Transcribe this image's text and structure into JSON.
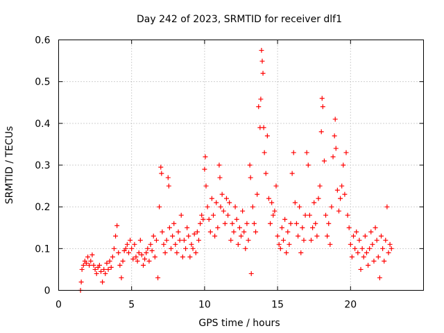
{
  "chart_data": {
    "type": "scatter",
    "title": "Day 242 of 2023, SRMTID for receiver dlf1",
    "xlabel": "GPS time / hours",
    "ylabel": "SRMTID / TECUs",
    "xlim": [
      0,
      25
    ],
    "ylim": [
      0,
      0.6
    ],
    "xticks": [
      0,
      5,
      10,
      15,
      20
    ],
    "xtick_labels": [
      "0",
      "5",
      "10",
      "15",
      "20"
    ],
    "yticks": [
      0,
      0.1,
      0.2,
      0.3,
      0.4,
      0.5,
      0.6
    ],
    "ytick_labels": [
      "0",
      "0.1",
      "0.2",
      "0.3",
      "0.4",
      "0.5",
      "0.6"
    ],
    "grid": true,
    "marker": "+",
    "color": "#ff0000",
    "series": [
      {
        "name": "SRMTID",
        "points": [
          [
            1.5,
            0.0
          ],
          [
            1.55,
            0.02
          ],
          [
            1.6,
            0.05
          ],
          [
            1.7,
            0.06
          ],
          [
            1.8,
            0.07
          ],
          [
            1.9,
            0.065
          ],
          [
            2.0,
            0.08
          ],
          [
            2.1,
            0.06
          ],
          [
            2.2,
            0.07
          ],
          [
            2.3,
            0.085
          ],
          [
            2.4,
            0.06
          ],
          [
            2.5,
            0.05
          ],
          [
            2.6,
            0.04
          ],
          [
            2.7,
            0.055
          ],
          [
            2.8,
            0.06
          ],
          [
            2.9,
            0.045
          ],
          [
            3.0,
            0.02
          ],
          [
            3.1,
            0.05
          ],
          [
            3.2,
            0.04
          ],
          [
            3.3,
            0.065
          ],
          [
            3.4,
            0.05
          ],
          [
            3.5,
            0.07
          ],
          [
            3.6,
            0.055
          ],
          [
            3.7,
            0.08
          ],
          [
            3.8,
            0.1
          ],
          [
            3.9,
            0.13
          ],
          [
            4.0,
            0.155
          ],
          [
            4.1,
            0.09
          ],
          [
            4.2,
            0.06
          ],
          [
            4.3,
            0.03
          ],
          [
            4.4,
            0.07
          ],
          [
            4.5,
            0.095
          ],
          [
            4.6,
            0.1
          ],
          [
            4.7,
            0.11
          ],
          [
            4.8,
            0.09
          ],
          [
            4.9,
            0.12
          ],
          [
            5.0,
            0.1
          ],
          [
            5.1,
            0.075
          ],
          [
            5.2,
            0.11
          ],
          [
            5.3,
            0.08
          ],
          [
            5.4,
            0.07
          ],
          [
            5.5,
            0.09
          ],
          [
            5.6,
            0.12
          ],
          [
            5.7,
            0.085
          ],
          [
            5.8,
            0.06
          ],
          [
            5.9,
            0.075
          ],
          [
            6.0,
            0.09
          ],
          [
            6.1,
            0.1
          ],
          [
            6.2,
            0.07
          ],
          [
            6.3,
            0.11
          ],
          [
            6.4,
            0.095
          ],
          [
            6.5,
            0.13
          ],
          [
            6.6,
            0.08
          ],
          [
            6.7,
            0.12
          ],
          [
            6.8,
            0.03
          ],
          [
            6.9,
            0.2
          ],
          [
            7.0,
            0.295
          ],
          [
            7.05,
            0.28
          ],
          [
            7.1,
            0.14
          ],
          [
            7.2,
            0.11
          ],
          [
            7.3,
            0.09
          ],
          [
            7.4,
            0.12
          ],
          [
            7.5,
            0.27
          ],
          [
            7.55,
            0.25
          ],
          [
            7.6,
            0.15
          ],
          [
            7.7,
            0.1
          ],
          [
            7.8,
            0.13
          ],
          [
            7.9,
            0.16
          ],
          [
            8.0,
            0.11
          ],
          [
            8.1,
            0.09
          ],
          [
            8.2,
            0.14
          ],
          [
            8.3,
            0.12
          ],
          [
            8.4,
            0.18
          ],
          [
            8.5,
            0.08
          ],
          [
            8.6,
            0.12
          ],
          [
            8.7,
            0.1
          ],
          [
            8.8,
            0.15
          ],
          [
            8.9,
            0.13
          ],
          [
            9.0,
            0.08
          ],
          [
            9.1,
            0.11
          ],
          [
            9.2,
            0.1
          ],
          [
            9.3,
            0.135
          ],
          [
            9.4,
            0.09
          ],
          [
            9.5,
            0.14
          ],
          [
            9.6,
            0.12
          ],
          [
            9.7,
            0.16
          ],
          [
            9.8,
            0.18
          ],
          [
            9.9,
            0.17
          ],
          [
            10.0,
            0.29
          ],
          [
            10.05,
            0.32
          ],
          [
            10.1,
            0.25
          ],
          [
            10.2,
            0.2
          ],
          [
            10.3,
            0.17
          ],
          [
            10.4,
            0.14
          ],
          [
            10.5,
            0.22
          ],
          [
            10.6,
            0.18
          ],
          [
            10.7,
            0.13
          ],
          [
            10.8,
            0.21
          ],
          [
            10.9,
            0.15
          ],
          [
            11.0,
            0.3
          ],
          [
            11.05,
            0.27
          ],
          [
            11.1,
            0.2
          ],
          [
            11.2,
            0.23
          ],
          [
            11.3,
            0.19
          ],
          [
            11.4,
            0.16
          ],
          [
            11.5,
            0.22
          ],
          [
            11.6,
            0.18
          ],
          [
            11.7,
            0.21
          ],
          [
            11.8,
            0.12
          ],
          [
            11.9,
            0.16
          ],
          [
            12.0,
            0.14
          ],
          [
            12.1,
            0.2
          ],
          [
            12.2,
            0.17
          ],
          [
            12.3,
            0.11
          ],
          [
            12.4,
            0.15
          ],
          [
            12.5,
            0.13
          ],
          [
            12.6,
            0.19
          ],
          [
            12.7,
            0.14
          ],
          [
            12.8,
            0.1
          ],
          [
            12.9,
            0.16
          ],
          [
            13.0,
            0.12
          ],
          [
            13.1,
            0.3
          ],
          [
            13.15,
            0.27
          ],
          [
            13.2,
            0.04
          ],
          [
            13.3,
            0.2
          ],
          [
            13.4,
            0.16
          ],
          [
            13.5,
            0.14
          ],
          [
            13.6,
            0.23
          ],
          [
            13.7,
            0.44
          ],
          [
            13.8,
            0.39
          ],
          [
            13.85,
            0.458
          ],
          [
            13.9,
            0.575
          ],
          [
            13.95,
            0.549
          ],
          [
            14.0,
            0.52
          ],
          [
            14.05,
            0.39
          ],
          [
            14.1,
            0.33
          ],
          [
            14.2,
            0.28
          ],
          [
            14.3,
            0.37
          ],
          [
            14.4,
            0.22
          ],
          [
            14.5,
            0.16
          ],
          [
            14.6,
            0.21
          ],
          [
            14.7,
            0.18
          ],
          [
            14.8,
            0.19
          ],
          [
            14.9,
            0.25
          ],
          [
            15.0,
            0.13
          ],
          [
            15.1,
            0.11
          ],
          [
            15.2,
            0.1
          ],
          [
            15.3,
            0.15
          ],
          [
            15.4,
            0.12
          ],
          [
            15.5,
            0.17
          ],
          [
            15.6,
            0.09
          ],
          [
            15.7,
            0.14
          ],
          [
            15.8,
            0.11
          ],
          [
            15.9,
            0.16
          ],
          [
            16.0,
            0.28
          ],
          [
            16.1,
            0.33
          ],
          [
            16.2,
            0.21
          ],
          [
            16.3,
            0.16
          ],
          [
            16.4,
            0.13
          ],
          [
            16.5,
            0.2
          ],
          [
            16.6,
            0.09
          ],
          [
            16.7,
            0.15
          ],
          [
            16.8,
            0.12
          ],
          [
            16.9,
            0.18
          ],
          [
            17.0,
            0.33
          ],
          [
            17.1,
            0.3
          ],
          [
            17.2,
            0.18
          ],
          [
            17.3,
            0.12
          ],
          [
            17.4,
            0.15
          ],
          [
            17.5,
            0.21
          ],
          [
            17.6,
            0.16
          ],
          [
            17.7,
            0.13
          ],
          [
            17.8,
            0.22
          ],
          [
            17.9,
            0.25
          ],
          [
            18.0,
            0.38
          ],
          [
            18.05,
            0.46
          ],
          [
            18.1,
            0.44
          ],
          [
            18.2,
            0.31
          ],
          [
            18.3,
            0.18
          ],
          [
            18.4,
            0.13
          ],
          [
            18.5,
            0.16
          ],
          [
            18.6,
            0.11
          ],
          [
            18.7,
            0.2
          ],
          [
            18.8,
            0.32
          ],
          [
            18.9,
            0.37
          ],
          [
            18.95,
            0.41
          ],
          [
            19.0,
            0.34
          ],
          [
            19.1,
            0.24
          ],
          [
            19.2,
            0.19
          ],
          [
            19.3,
            0.22
          ],
          [
            19.4,
            0.25
          ],
          [
            19.5,
            0.3
          ],
          [
            19.6,
            0.23
          ],
          [
            19.7,
            0.33
          ],
          [
            19.8,
            0.18
          ],
          [
            19.9,
            0.15
          ],
          [
            20.0,
            0.11
          ],
          [
            20.1,
            0.08
          ],
          [
            20.2,
            0.13
          ],
          [
            20.3,
            0.1
          ],
          [
            20.4,
            0.14
          ],
          [
            20.5,
            0.09
          ],
          [
            20.6,
            0.12
          ],
          [
            20.7,
            0.05
          ],
          [
            20.8,
            0.1
          ],
          [
            20.9,
            0.08
          ],
          [
            21.0,
            0.13
          ],
          [
            21.1,
            0.09
          ],
          [
            21.2,
            0.06
          ],
          [
            21.3,
            0.1
          ],
          [
            21.4,
            0.14
          ],
          [
            21.5,
            0.11
          ],
          [
            21.6,
            0.07
          ],
          [
            21.7,
            0.15
          ],
          [
            21.8,
            0.12
          ],
          [
            21.9,
            0.08
          ],
          [
            22.0,
            0.03
          ],
          [
            22.1,
            0.13
          ],
          [
            22.2,
            0.1
          ],
          [
            22.3,
            0.07
          ],
          [
            22.4,
            0.12
          ],
          [
            22.5,
            0.2
          ],
          [
            22.6,
            0.09
          ],
          [
            22.7,
            0.11
          ],
          [
            22.8,
            0.1
          ]
        ]
      }
    ]
  }
}
